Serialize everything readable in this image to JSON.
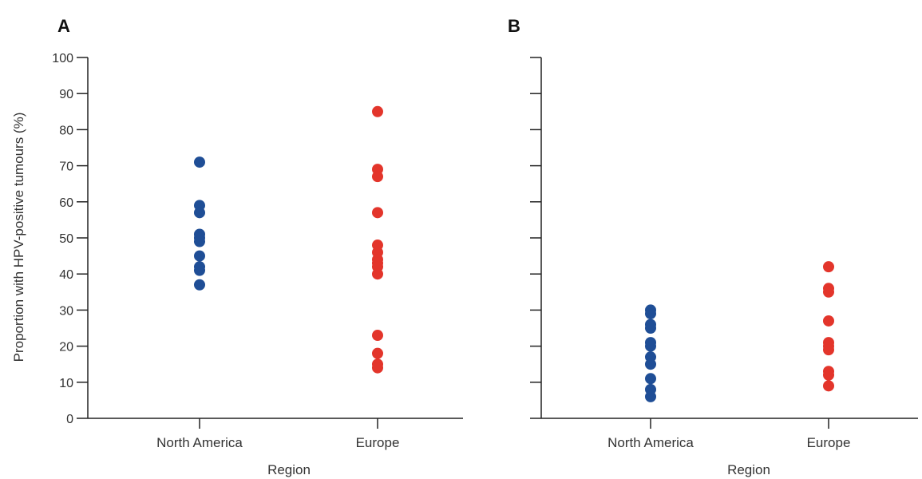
{
  "chart_data": [
    {
      "type": "scatter",
      "panel_label": "A",
      "title": "",
      "xlabel": "Region",
      "ylabel": "Proportion with HPV-positive tumours (%)",
      "categories": [
        "North America",
        "Europe"
      ],
      "ylim": [
        0,
        100
      ],
      "yticks": [
        "0",
        "10",
        "20",
        "30",
        "40",
        "50",
        "60",
        "70",
        "80",
        "90",
        "100"
      ],
      "grid": false,
      "series": [
        {
          "category": "North America",
          "color": "#1f4e96",
          "values": [
            71,
            59,
            57,
            51,
            50,
            49,
            45,
            42,
            41,
            37
          ]
        },
        {
          "category": "Europe",
          "color": "#e3352b",
          "values": [
            85,
            69,
            67,
            57,
            48,
            46,
            44,
            43,
            42,
            40,
            23,
            18,
            15,
            14
          ]
        }
      ]
    },
    {
      "type": "scatter",
      "panel_label": "B",
      "title": "",
      "xlabel": "Region",
      "ylabel": "",
      "categories": [
        "North America",
        "Europe"
      ],
      "ylim": [
        0,
        100
      ],
      "grid": false,
      "series": [
        {
          "category": "North America",
          "color": "#1f4e96",
          "values": [
            30,
            29,
            26,
            25,
            21,
            20,
            17,
            15,
            11,
            8,
            6
          ]
        },
        {
          "category": "Europe",
          "color": "#e3352b",
          "values": [
            42,
            36,
            35,
            27,
            21,
            20,
            19,
            13,
            12,
            9
          ]
        }
      ]
    }
  ]
}
